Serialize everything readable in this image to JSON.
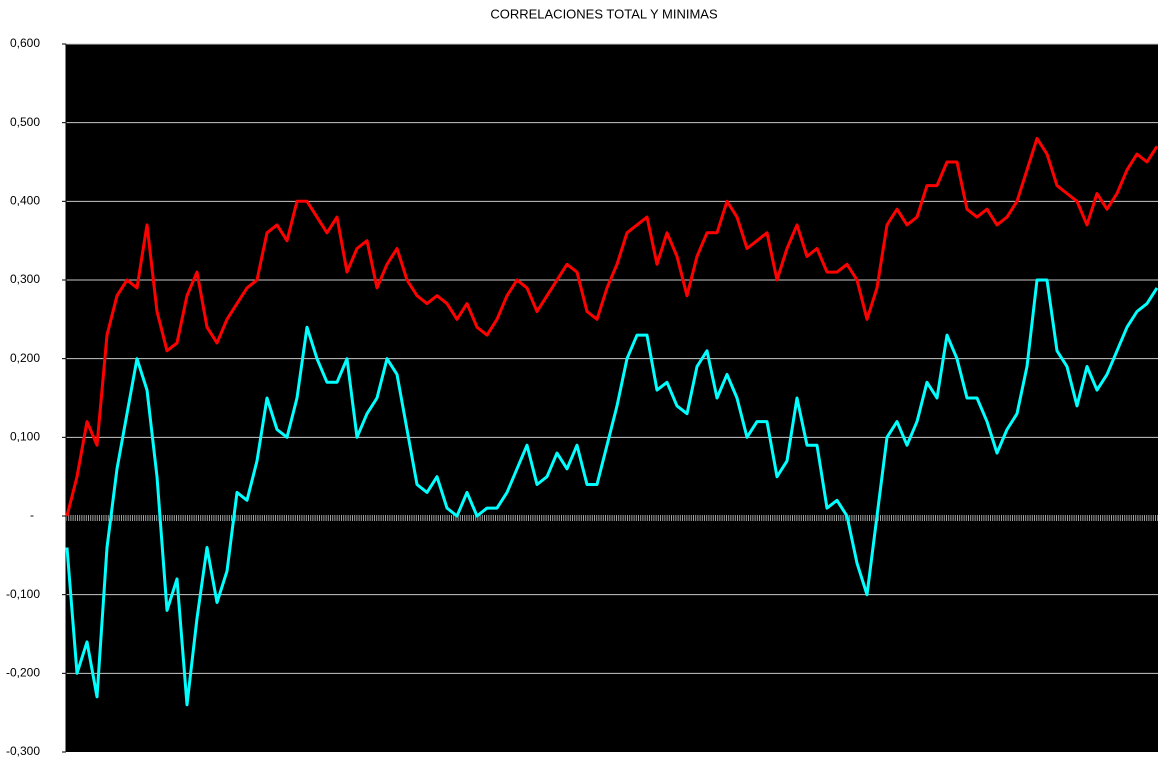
{
  "chart_data": {
    "type": "line",
    "title": "CORRELACIONES TOTAL Y MINIMAS",
    "categories": [
      null,
      null,
      null,
      null,
      null,
      null,
      null,
      null,
      null,
      null,
      null,
      null,
      null,
      null,
      null,
      null,
      null,
      null,
      null,
      null,
      null,
      null,
      null,
      null,
      null,
      null,
      null,
      null,
      null,
      null,
      null,
      null,
      null,
      null,
      null,
      null,
      null,
      null,
      null,
      null,
      null,
      null,
      null,
      null,
      null,
      null,
      null,
      null,
      null,
      null,
      null,
      null,
      null,
      null,
      null,
      null,
      null,
      null,
      null,
      null,
      null,
      null,
      null,
      null,
      null,
      null,
      null,
      null,
      null,
      null,
      null,
      null,
      null,
      null,
      null,
      null,
      null,
      null,
      null,
      null,
      null,
      null,
      null,
      null,
      null,
      null,
      null,
      null,
      null,
      null,
      null,
      null,
      null,
      null,
      null,
      null,
      null,
      null,
      null,
      null,
      null,
      null,
      null,
      null,
      null,
      null,
      null,
      null,
      null,
      null
    ],
    "series": [
      {
        "color": "#ff0000",
        "values": [
          0.0,
          0.05,
          0.12,
          0.09,
          0.23,
          0.28,
          0.3,
          0.29,
          0.37,
          0.26,
          0.21,
          0.22,
          0.28,
          0.31,
          0.24,
          0.22,
          0.25,
          0.27,
          0.29,
          0.3,
          0.36,
          0.37,
          0.35,
          0.4,
          0.4,
          0.38,
          0.36,
          0.38,
          0.31,
          0.34,
          0.35,
          0.29,
          0.32,
          0.34,
          0.3,
          0.28,
          0.27,
          0.28,
          0.27,
          0.25,
          0.27,
          0.24,
          0.23,
          0.25,
          0.28,
          0.3,
          0.29,
          0.26,
          0.28,
          0.3,
          0.32,
          0.31,
          0.26,
          0.25,
          0.29,
          0.32,
          0.36,
          0.37,
          0.38,
          0.32,
          0.36,
          0.33,
          0.28,
          0.33,
          0.36,
          0.36,
          0.4,
          0.38,
          0.34,
          0.35,
          0.36,
          0.3,
          0.34,
          0.37,
          0.33,
          0.34,
          0.31,
          0.31,
          0.32,
          0.3,
          0.25,
          0.29,
          0.37,
          0.39,
          0.37,
          0.38,
          0.42,
          0.42,
          0.45,
          0.45,
          0.39,
          0.38,
          0.39,
          0.37,
          0.38,
          0.4,
          0.44,
          0.48,
          0.46,
          0.42,
          0.41,
          0.4,
          0.37,
          0.41,
          0.39,
          0.41,
          0.44,
          0.46,
          0.45,
          0.47
        ]
      },
      {
        "color": "#00ffff",
        "values": [
          -0.04,
          -0.2,
          -0.16,
          -0.23,
          -0.04,
          0.06,
          0.13,
          0.2,
          0.16,
          0.05,
          -0.12,
          -0.08,
          -0.24,
          -0.13,
          -0.04,
          -0.11,
          -0.07,
          0.03,
          0.02,
          0.07,
          0.15,
          0.11,
          0.1,
          0.15,
          0.24,
          0.2,
          0.17,
          0.17,
          0.2,
          0.1,
          0.13,
          0.15,
          0.2,
          0.18,
          0.11,
          0.04,
          0.03,
          0.05,
          0.01,
          0.0,
          0.03,
          0.0,
          0.01,
          0.01,
          0.03,
          0.06,
          0.09,
          0.04,
          0.05,
          0.08,
          0.06,
          0.09,
          0.04,
          0.04,
          0.09,
          0.14,
          0.2,
          0.23,
          0.23,
          0.16,
          0.17,
          0.14,
          0.13,
          0.19,
          0.21,
          0.15,
          0.18,
          0.15,
          0.1,
          0.12,
          0.12,
          0.05,
          0.07,
          0.15,
          0.09,
          0.09,
          0.01,
          0.02,
          0.0,
          -0.06,
          -0.1,
          0.0,
          0.1,
          0.12,
          0.09,
          0.12,
          0.17,
          0.15,
          0.23,
          0.2,
          0.15,
          0.15,
          0.12,
          0.08,
          0.11,
          0.13,
          0.19,
          0.3,
          0.3,
          0.21,
          0.19,
          0.14,
          0.19,
          0.16,
          0.18,
          0.21,
          0.24,
          0.26,
          0.27,
          0.29
        ]
      }
    ],
    "ylim": [
      -0.3,
      0.6
    ],
    "yticks": [
      {
        "value": -0.3,
        "label": "-0,300"
      },
      {
        "value": -0.2,
        "label": "-0,200"
      },
      {
        "value": -0.1,
        "label": "-0,100"
      },
      {
        "value": 0,
        "label": "-"
      },
      {
        "value": 0.1,
        "label": "0,100"
      },
      {
        "value": 0.2,
        "label": "0,200"
      },
      {
        "value": 0.3,
        "label": "0,300"
      },
      {
        "value": 0.4,
        "label": "0,400"
      },
      {
        "value": 0.5,
        "label": "0,500"
      },
      {
        "value": 0.6,
        "label": "0,600"
      }
    ],
    "grid": true
  }
}
